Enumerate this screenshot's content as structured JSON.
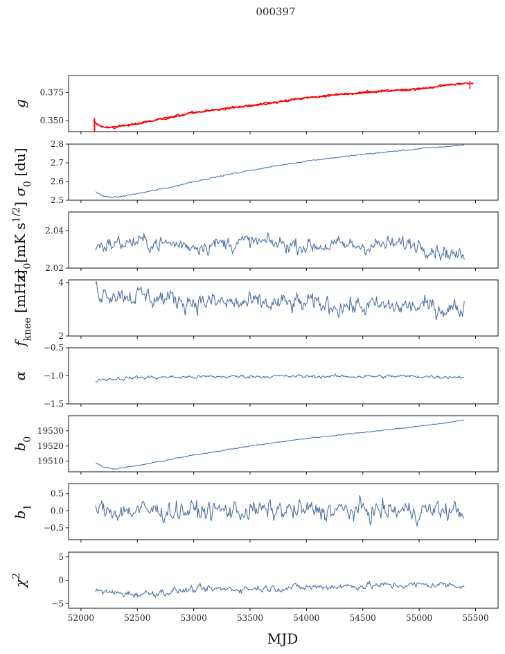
{
  "title": "000397",
  "xlabel": "MJD",
  "x_ticks": [
    52000,
    52500,
    53000,
    53500,
    54000,
    54500,
    55000,
    55500
  ],
  "xlim": [
    51890,
    55700
  ],
  "colors": {
    "series": "#4c72a4",
    "fit": "#ff0000"
  },
  "chart_data": [
    {
      "type": "line",
      "ylabel": "g",
      "ylabel_italic": true,
      "ylim": [
        0.34,
        0.39
      ],
      "yticks": [
        0.35,
        0.375
      ],
      "ytick_labels": [
        "0.350",
        "0.375"
      ],
      "series": [
        {
          "values_x": [
            52110,
            52150,
            52200,
            52300,
            52500,
            52700,
            53000,
            53500,
            54000,
            54500,
            55000,
            55200,
            55400
          ],
          "values_y": [
            0.349,
            0.346,
            0.344,
            0.344,
            0.347,
            0.351,
            0.357,
            0.363,
            0.37,
            0.375,
            0.378,
            0.381,
            0.383
          ],
          "noise": 0.0007,
          "color": "fit"
        },
        {
          "values_x": [
            52110,
            52150,
            52200,
            52300,
            52500,
            52700,
            53000,
            53500,
            54000,
            54500,
            55000,
            55200,
            55400,
            55480
          ],
          "values_y": [
            0.349,
            0.346,
            0.344,
            0.344,
            0.347,
            0.351,
            0.357,
            0.363,
            0.37,
            0.375,
            0.378,
            0.381,
            0.383,
            0.383
          ],
          "noise": 0.001,
          "color": "fit"
        }
      ]
    },
    {
      "type": "line",
      "ylabel": "σ0 [du]",
      "ylim": [
        2.5,
        2.8
      ],
      "yticks": [
        2.5,
        2.6,
        2.7,
        2.8
      ],
      "ytick_labels": [
        "2.5",
        "2.6",
        "2.7",
        "2.8"
      ],
      "series": [
        {
          "values_x": [
            52130,
            52200,
            52300,
            52500,
            52800,
            53000,
            53500,
            54000,
            54500,
            55000,
            55400
          ],
          "values_y": [
            2.545,
            2.52,
            2.515,
            2.535,
            2.57,
            2.6,
            2.66,
            2.71,
            2.745,
            2.775,
            2.795
          ],
          "noise": 0.003,
          "color": "series"
        }
      ]
    },
    {
      "type": "line",
      "ylabel": "σ0[mK s1/2]",
      "ylim": [
        2.02,
        2.05
      ],
      "yticks": [
        2.02,
        2.04
      ],
      "ytick_labels": [
        "2.02",
        "2.04"
      ],
      "series": [
        {
          "values_x": [
            52130,
            52500,
            53000,
            53500,
            54000,
            54500,
            55000,
            55200,
            55400
          ],
          "values_y": [
            2.032,
            2.034,
            2.032,
            2.034,
            2.032,
            2.032,
            2.033,
            2.029,
            2.026
          ],
          "noise": 0.004,
          "color": "series"
        }
      ]
    },
    {
      "type": "line",
      "ylabel": "fknee [mHz]",
      "ylim": [
        2.0,
        4.1
      ],
      "yticks": [
        2,
        4
      ],
      "ytick_labels": [
        "2",
        "4"
      ],
      "series": [
        {
          "values_x": [
            52130,
            52500,
            53000,
            53500,
            54000,
            54500,
            55000,
            55400
          ],
          "values_y": [
            3.7,
            3.5,
            3.3,
            3.2,
            3.2,
            3.1,
            3.1,
            3.0
          ],
          "noise": 0.35,
          "color": "series"
        }
      ]
    },
    {
      "type": "line",
      "ylabel": "α",
      "ylabel_italic": true,
      "ylim": [
        -1.5,
        -0.5
      ],
      "yticks": [
        -1.5,
        -1.0,
        -0.5
      ],
      "ytick_labels": [
        "−1.5",
        "−1.0",
        "−0.5"
      ],
      "series": [
        {
          "values_x": [
            52130,
            52500,
            53000,
            53500,
            54000,
            54500,
            55000,
            55400
          ],
          "values_y": [
            -1.07,
            -1.03,
            -1.02,
            -1.01,
            -1.01,
            -1.01,
            -1.01,
            -1.02
          ],
          "noise": 0.03,
          "color": "series"
        }
      ]
    },
    {
      "type": "line",
      "ylabel": "b0",
      "ylim": [
        19503,
        19540
      ],
      "yticks": [
        19510,
        19520,
        19530
      ],
      "ytick_labels": [
        "19510",
        "19520",
        "19530"
      ],
      "series": [
        {
          "values_x": [
            52130,
            52200,
            52300,
            52500,
            53000,
            53500,
            54000,
            54500,
            55000,
            55400
          ],
          "values_y": [
            19509,
            19506,
            19505,
            19507,
            19514,
            19520,
            19525,
            19529,
            19533,
            19537
          ],
          "noise": 0.3,
          "color": "series"
        }
      ]
    },
    {
      "type": "line",
      "ylabel": "b1",
      "ylim": [
        -0.85,
        0.8
      ],
      "yticks": [
        -0.5,
        0.0,
        0.5
      ],
      "ytick_labels": [
        "−0.5",
        "0.0",
        "0.5"
      ],
      "series": [
        {
          "values_x": [
            52130,
            53000,
            54000,
            55000,
            55400
          ],
          "values_y": [
            0.0,
            0.0,
            0.0,
            0.0,
            0.0
          ],
          "noise": 0.28,
          "color": "series"
        }
      ]
    },
    {
      "type": "line",
      "ylabel": "χ2",
      "ylim": [
        -6,
        6
      ],
      "yticks": [
        -5,
        0,
        5
      ],
      "ytick_labels": [
        "−5",
        "0",
        "5"
      ],
      "series": [
        {
          "values_x": [
            52130,
            52500,
            53000,
            53500,
            54000,
            54500,
            55000,
            55400
          ],
          "values_y": [
            -2.5,
            -3.0,
            -2.0,
            -1.8,
            -1.5,
            -1.2,
            -1.0,
            -1.0
          ],
          "noise": 0.7,
          "color": "series"
        }
      ]
    }
  ]
}
